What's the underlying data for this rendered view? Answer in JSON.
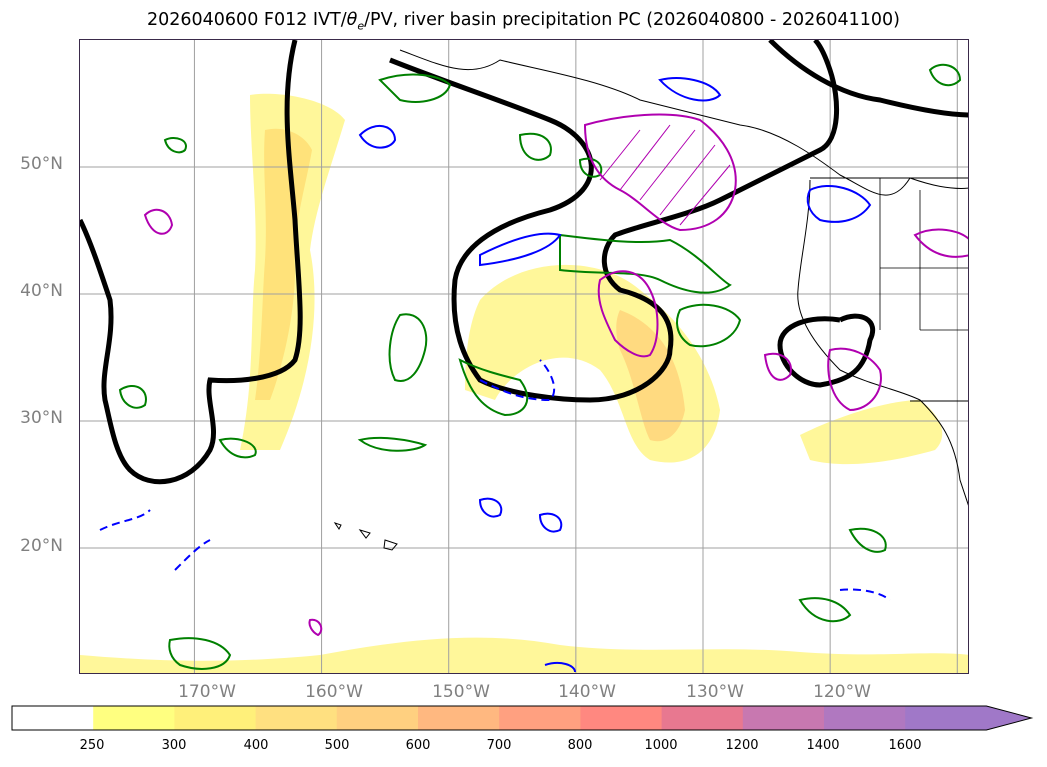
{
  "title": "2026040600 F012 IVT/θe/PV, river basin precipitation PC (2026040800 - 2026041100)",
  "title_parts": {
    "prefix": "2026040600 F012 IVT/",
    "theta": "θ",
    "theta_sub": "e",
    "suffix": "/PV, river basin precipitation PC (2026040800 - 2026041100)"
  },
  "map": {
    "projection": "equirectangular",
    "lon_range": [
      -179.0,
      -109.0
    ],
    "lat_range": [
      10.0,
      60.0
    ],
    "gridlines": true,
    "lat_labels": [
      "50°N",
      "40°N",
      "30°N",
      "20°N"
    ],
    "lat_values": [
      50,
      40,
      30,
      20
    ],
    "lon_labels": [
      "170°W",
      "160°W",
      "150°W",
      "140°W",
      "130°W",
      "120°W"
    ],
    "lon_values": [
      -170,
      -160,
      -150,
      -140,
      -130,
      -120
    ],
    "fields": {
      "ivt_shading": "IVT (kg m-1 s-1), yellow-orange fill",
      "theta_e_contour_color": "#000000",
      "pv_contour_colors": [
        "#008000",
        "#0000ff"
      ],
      "precip_pc_color": "#b000b0"
    }
  },
  "colorbar": {
    "tick_labels": [
      "250",
      "300",
      "400",
      "500",
      "600",
      "700",
      "800",
      "1000",
      "1200",
      "1400",
      "1600"
    ],
    "colors": [
      "#ffffff",
      "#ffff80",
      "#fff07a",
      "#ffe080",
      "#ffd080",
      "#ffb880",
      "#ffa080",
      "#ff8880",
      "#e87890",
      "#c878b0",
      "#b078c0",
      "#a078c8"
    ],
    "extend": "max"
  }
}
